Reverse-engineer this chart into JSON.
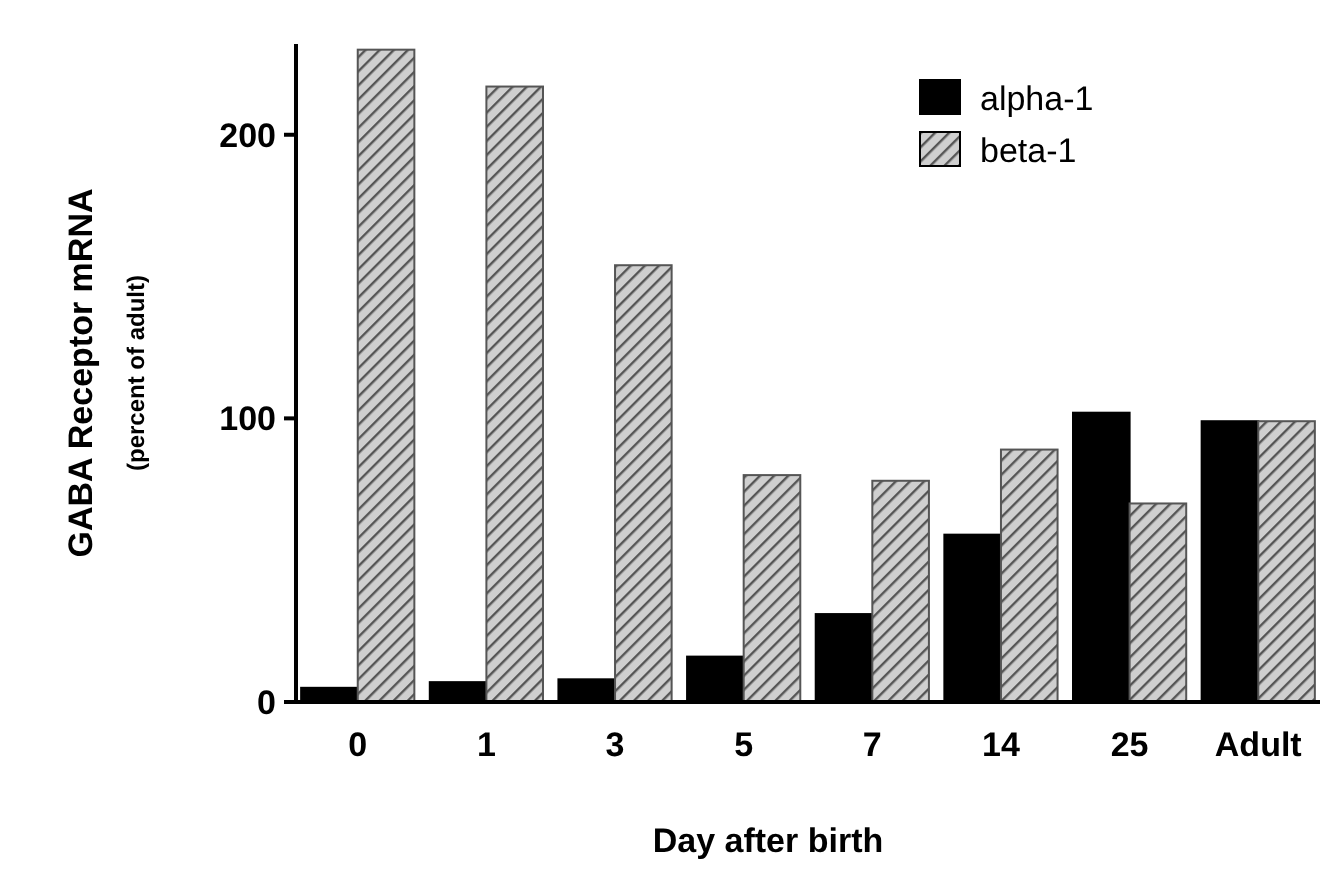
{
  "chart_data": {
    "type": "bar",
    "xlabel": "Day after birth",
    "ylabel": "GABA Receptor mRNA",
    "subtitle": "(percent of adult)",
    "categories": [
      "0",
      "1",
      "3",
      "5",
      "7",
      "14",
      "25",
      "Adult"
    ],
    "series": [
      {
        "name": "alpha-1",
        "color": "#000000",
        "values": [
          5,
          7,
          8,
          16,
          31,
          59,
          102,
          99
        ]
      },
      {
        "name": "beta-1",
        "color": "#555555",
        "values": [
          230,
          217,
          154,
          80,
          78,
          89,
          70,
          99
        ]
      }
    ],
    "ylim": [
      0,
      232
    ],
    "yticks": [
      0,
      100,
      200
    ],
    "legend": "top right",
    "grid": false
  }
}
